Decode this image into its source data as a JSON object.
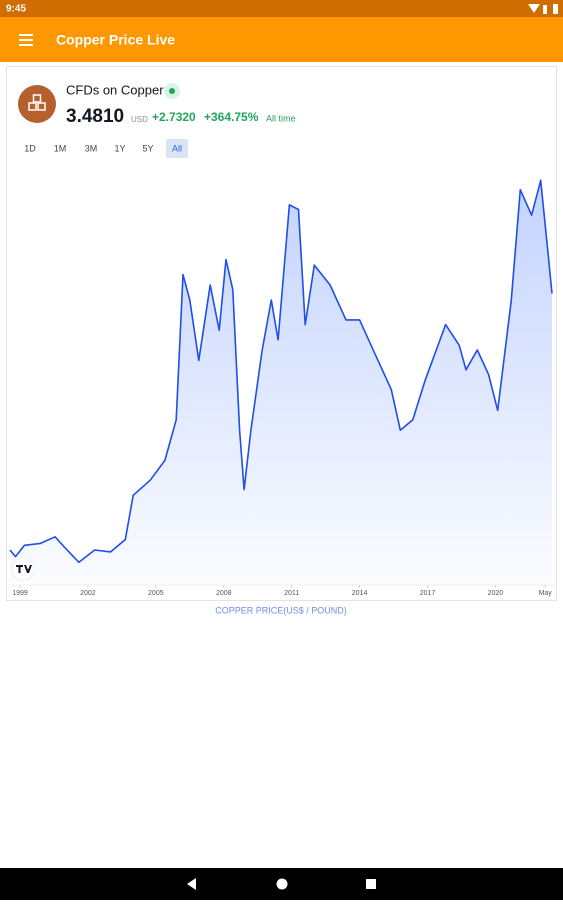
{
  "status_bar": {
    "time": "9:45"
  },
  "app_bar": {
    "title": "Copper Price Live"
  },
  "widget": {
    "symbol": "CFDs on Copper",
    "price": "3.4810",
    "currency": "USD",
    "change": "+2.7320",
    "change_pct": "+364.75%",
    "period": "All time",
    "ranges": [
      "1D",
      "1M",
      "3M",
      "1Y",
      "5Y",
      "All"
    ],
    "active_range": "All"
  },
  "chart_data": {
    "type": "line",
    "color": "#1f4ee8",
    "x": [
      1998.56,
      1998.8,
      1999.2,
      1999.9,
      2000.55,
      2001.0,
      2001.6,
      2002.3,
      2003.0,
      2003.65,
      2004.0,
      2004.75,
      2005.4,
      2005.9,
      2006.2,
      2006.5,
      2006.9,
      2007.4,
      2007.8,
      2008.1,
      2008.4,
      2008.7,
      2008.9,
      2009.2,
      2009.7,
      2010.1,
      2010.4,
      2010.9,
      2011.3,
      2011.6,
      2012.0,
      2012.7,
      2013.4,
      2014.0,
      2014.7,
      2015.4,
      2015.8,
      2016.35,
      2016.9,
      2017.8,
      2018.4,
      2018.7,
      2019.2,
      2019.7,
      2020.1,
      2020.7,
      2021.1,
      2021.6,
      2022.0,
      2022.4,
      2022.5
    ],
    "values": [
      0.76,
      0.69,
      0.81,
      0.83,
      0.9,
      0.78,
      0.63,
      0.76,
      0.74,
      0.87,
      1.34,
      1.5,
      1.71,
      2.14,
      3.68,
      3.41,
      2.77,
      3.57,
      3.09,
      3.84,
      3.52,
      2.03,
      1.4,
      2.03,
      2.88,
      3.41,
      2.99,
      4.42,
      4.37,
      3.15,
      3.78,
      3.57,
      3.2,
      3.2,
      2.83,
      2.46,
      2.03,
      2.14,
      2.56,
      3.15,
      2.93,
      2.67,
      2.88,
      2.62,
      2.24,
      3.41,
      4.58,
      4.31,
      4.68,
      3.73,
      3.48
    ],
    "xlim": [
      1998.47,
      2022.5
    ],
    "ylim": [
      0.41,
      4.81
    ],
    "xticks": [
      1999,
      2002,
      2005,
      2008,
      2011,
      2014,
      2017,
      2020,
      {
        "value": 2022.2,
        "label": "May"
      }
    ]
  },
  "caption": "COPPER PRICE(US$ / POUND)"
}
